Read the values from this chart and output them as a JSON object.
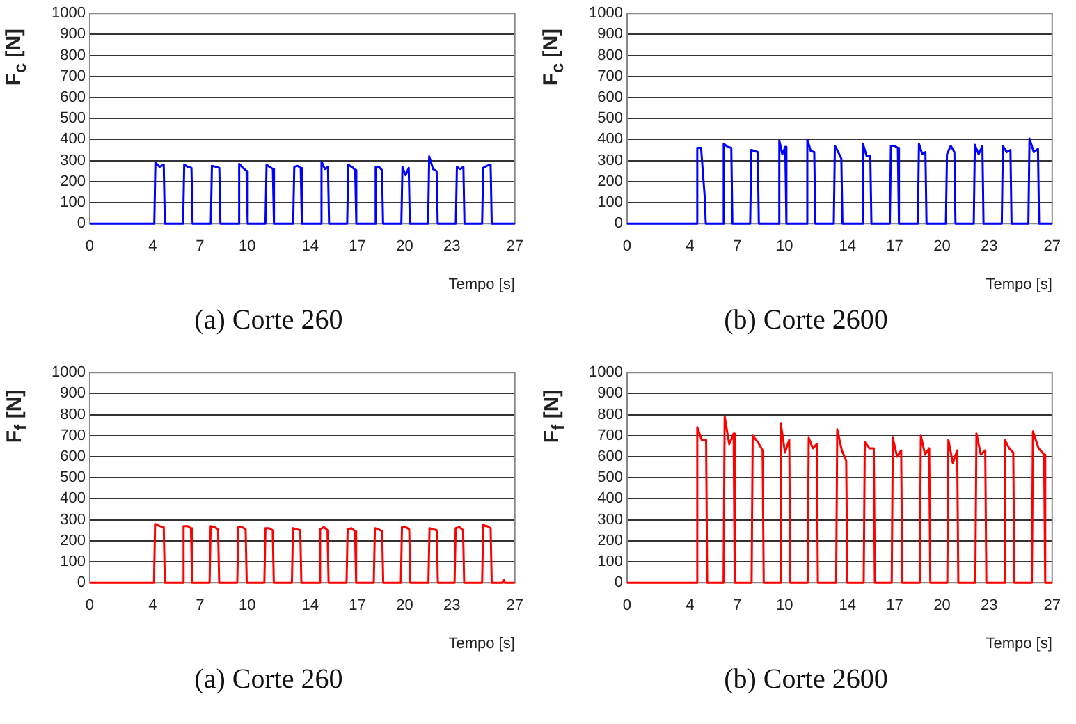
{
  "chart_data": [
    {
      "type": "line",
      "title": "(a) Corte 260",
      "xlabel": "Tempo [s]",
      "ylabel": "F$_{c}$ [N]",
      "xlim": [
        0,
        27
      ],
      "xticks": [
        0,
        4,
        7,
        10,
        14,
        17,
        20,
        23,
        27
      ],
      "ylim": [
        0,
        1000
      ],
      "yticks": [
        0,
        100,
        200,
        300,
        400,
        500,
        600,
        700,
        800,
        900,
        1000
      ],
      "grid": "y",
      "marker": "none",
      "line_style": "solid",
      "series": [
        {
          "color": "#0000ff",
          "x": [
            0,
            4.1,
            4.17,
            4.44,
            4.7,
            4.77,
            5.93,
            6.0,
            6.23,
            6.46,
            6.53,
            7.69,
            7.76,
            8.0,
            8.23,
            8.3,
            9.42,
            9.49,
            9.73,
            9.96,
            10.03,
            11.16,
            11.23,
            11.43,
            11.63,
            11.7,
            12.92,
            12.99,
            13.2,
            13.4,
            13.47,
            14.65,
            14.72,
            14.93,
            15.13,
            15.2,
            16.35,
            16.42,
            16.64,
            16.86,
            16.93,
            18.09,
            18.16,
            18.36,
            18.56,
            18.63,
            19.79,
            19.86,
            20.06,
            20.26,
            20.33,
            21.49,
            21.56,
            21.8,
            22.03,
            22.1,
            23.25,
            23.32,
            23.53,
            23.73,
            23.8,
            24.92,
            24.99,
            25.23,
            25.46,
            25.53,
            27
          ],
          "values": [
            0,
            0,
            290,
            270,
            280,
            0,
            0,
            280,
            270,
            265,
            0,
            0,
            275,
            270,
            265,
            0,
            0,
            285,
            265,
            250,
            0,
            0,
            280,
            270,
            260,
            0,
            0,
            270,
            275,
            265,
            0,
            0,
            295,
            260,
            270,
            0,
            0,
            280,
            270,
            255,
            0,
            0,
            270,
            270,
            255,
            0,
            0,
            270,
            230,
            265,
            0,
            0,
            320,
            260,
            250,
            0,
            0,
            270,
            260,
            270,
            0,
            0,
            265,
            275,
            280,
            0,
            0
          ]
        }
      ]
    },
    {
      "type": "line",
      "title": "(b) Corte 2600",
      "xlabel": "Tempo [s]",
      "ylabel": "F$_{c}$ [N]",
      "xlim": [
        0,
        27
      ],
      "xticks": [
        0,
        4,
        7,
        10,
        14,
        17,
        20,
        23,
        27
      ],
      "ylim": [
        0,
        1000
      ],
      "yticks": [
        0,
        100,
        200,
        300,
        400,
        500,
        600,
        700,
        800,
        900,
        1000
      ],
      "grid": "y",
      "marker": "none",
      "line_style": "solid",
      "series": [
        {
          "color": "#0000ff",
          "x": [
            0,
            4.39,
            4.46,
            4.7,
            4.93,
            5.0,
            6.07,
            6.14,
            6.38,
            6.62,
            6.69,
            7.82,
            7.89,
            8.1,
            8.3,
            8.37,
            9.6,
            9.67,
            9.86,
            10.05,
            10.12,
            11.38,
            11.45,
            11.67,
            11.89,
            11.96,
            13.13,
            13.2,
            13.41,
            13.61,
            13.68,
            14.91,
            14.98,
            15.22,
            15.45,
            15.52,
            16.69,
            16.76,
            16.98,
            17.2,
            17.27,
            18.47,
            18.54,
            18.75,
            18.95,
            19.02,
            20.25,
            20.32,
            20.56,
            20.79,
            20.86,
            22.02,
            22.09,
            22.33,
            22.57,
            22.64,
            23.8,
            23.87,
            24.11,
            24.35,
            24.42,
            25.49,
            25.56,
            25.83,
            26.1,
            26.17,
            27
          ],
          "values": [
            0,
            0,
            360,
            360,
            130,
            0,
            0,
            380,
            365,
            360,
            0,
            0,
            350,
            345,
            340,
            0,
            0,
            395,
            330,
            365,
            0,
            0,
            400,
            345,
            340,
            0,
            0,
            370,
            340,
            310,
            0,
            0,
            380,
            320,
            320,
            0,
            0,
            370,
            370,
            360,
            0,
            0,
            380,
            330,
            340,
            0,
            0,
            330,
            370,
            340,
            0,
            0,
            375,
            330,
            370,
            0,
            0,
            370,
            340,
            350,
            0,
            0,
            405,
            340,
            355,
            0,
            0
          ]
        }
      ]
    },
    {
      "type": "line",
      "title": "(a) Corte 260",
      "xlabel": "Tempo [s]",
      "ylabel": "F$_{f}$ [N]",
      "xlim": [
        0,
        27
      ],
      "xticks": [
        0,
        4,
        7,
        10,
        14,
        17,
        20,
        23,
        27
      ],
      "ylim": [
        0,
        1000
      ],
      "yticks": [
        0,
        100,
        200,
        300,
        400,
        500,
        600,
        700,
        800,
        900,
        1000
      ],
      "grid": "y",
      "marker": "none",
      "line_style": "solid",
      "series": [
        {
          "color": "#ff0000",
          "x": [
            0,
            4.08,
            4.15,
            4.43,
            4.7,
            4.77,
            5.89,
            5.96,
            6.2,
            6.43,
            6.5,
            7.61,
            7.68,
            7.92,
            8.15,
            8.22,
            9.37,
            9.44,
            9.67,
            9.9,
            9.97,
            11.09,
            11.16,
            11.39,
            11.62,
            11.69,
            12.84,
            12.91,
            13.14,
            13.37,
            13.44,
            14.56,
            14.63,
            14.87,
            15.1,
            15.17,
            16.31,
            16.38,
            16.62,
            16.85,
            16.92,
            18.04,
            18.11,
            18.34,
            18.57,
            18.64,
            19.76,
            19.83,
            20.06,
            20.29,
            20.36,
            21.51,
            21.58,
            21.81,
            22.04,
            22.11,
            23.17,
            23.24,
            23.48,
            23.71,
            23.78,
            24.92,
            24.99,
            25.23,
            25.46,
            25.53,
            26.2,
            26.28,
            26.36,
            27
          ],
          "values": [
            0,
            0,
            280,
            270,
            265,
            0,
            0,
            270,
            270,
            260,
            0,
            0,
            270,
            265,
            255,
            0,
            0,
            265,
            265,
            255,
            0,
            0,
            260,
            260,
            250,
            0,
            0,
            260,
            255,
            250,
            0,
            0,
            255,
            265,
            250,
            0,
            0,
            255,
            260,
            245,
            0,
            0,
            260,
            255,
            245,
            0,
            0,
            265,
            265,
            255,
            0,
            0,
            260,
            255,
            250,
            0,
            0,
            260,
            265,
            250,
            0,
            0,
            275,
            270,
            260,
            0,
            0,
            15,
            0,
            0
          ]
        }
      ]
    },
    {
      "type": "line",
      "title": "(b) Corte 2600",
      "xlabel": "Tempo [s]",
      "ylabel": "F$_{f}$ [N]",
      "xlim": [
        0,
        27
      ],
      "xticks": [
        0,
        4,
        7,
        10,
        14,
        17,
        20,
        23,
        27
      ],
      "ylim": [
        0,
        1000
      ],
      "yticks": [
        0,
        100,
        200,
        300,
        400,
        500,
        600,
        700,
        800,
        900,
        1000
      ],
      "grid": "y",
      "marker": "none",
      "line_style": "solid",
      "series": [
        {
          "color": "#ff0000",
          "x": [
            0,
            4.39,
            4.46,
            4.74,
            5.02,
            5.09,
            6.13,
            6.2,
            6.49,
            6.77,
            6.84,
            7.91,
            7.98,
            8.3,
            8.61,
            8.68,
            9.69,
            9.76,
            10.03,
            10.3,
            10.37,
            11.47,
            11.54,
            11.8,
            12.05,
            12.12,
            13.28,
            13.35,
            13.64,
            13.92,
            13.99,
            15.03,
            15.1,
            15.39,
            15.67,
            15.74,
            16.81,
            16.88,
            17.15,
            17.41,
            17.48,
            18.59,
            18.66,
            18.93,
            19.19,
            19.26,
            20.34,
            20.41,
            20.69,
            20.97,
            21.04,
            22.12,
            22.19,
            22.47,
            22.75,
            22.82,
            23.93,
            24.0,
            24.27,
            24.53,
            24.6,
            25.71,
            25.78,
            26.14,
            26.49,
            26.56,
            27
          ],
          "values": [
            0,
            0,
            740,
            680,
            680,
            0,
            0,
            790,
            660,
            710,
            0,
            0,
            700,
            670,
            630,
            0,
            0,
            760,
            620,
            680,
            0,
            0,
            690,
            640,
            660,
            0,
            0,
            730,
            630,
            580,
            0,
            0,
            670,
            640,
            640,
            0,
            0,
            690,
            600,
            630,
            0,
            0,
            700,
            610,
            640,
            0,
            0,
            680,
            570,
            630,
            0,
            0,
            710,
            610,
            630,
            0,
            0,
            680,
            640,
            620,
            0,
            0,
            720,
            640,
            610,
            0,
            0
          ]
        }
      ]
    }
  ]
}
